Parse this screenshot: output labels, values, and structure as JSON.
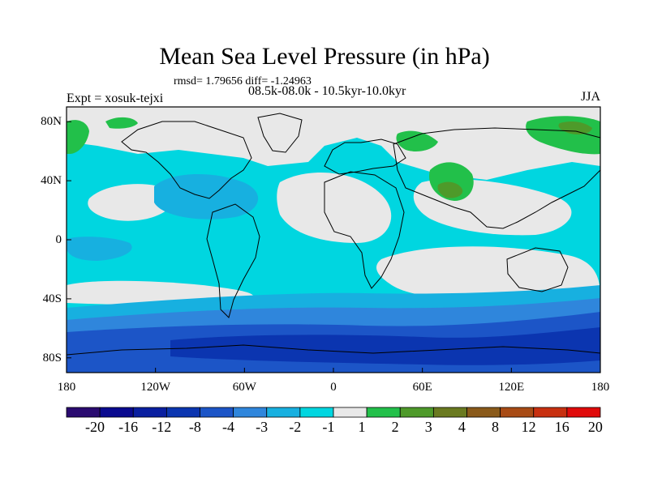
{
  "header": {
    "title": "Mean Sea Level Pressure (in hPa)",
    "stats": "rmsd= 1.79656 diff= -1.24963",
    "period": "08.5k-08.0k - 10.5kyr-10.0kyr",
    "experiment": "Expt = xosuk-tejxi",
    "season": "JJA"
  },
  "map": {
    "lat_ticks": [
      "80N",
      "40N",
      "0",
      "40S",
      "80S"
    ],
    "lon_ticks": [
      "180",
      "120W",
      "60W",
      "0",
      "60E",
      "120E",
      "180"
    ]
  },
  "colorbar": {
    "labels": [
      "-20",
      "-16",
      "-12",
      "-8",
      "-4",
      "-3",
      "-2",
      "-1",
      "1",
      "2",
      "3",
      "4",
      "8",
      "12",
      "16",
      "20"
    ],
    "colors": [
      "#2a0b70",
      "#0a0a8f",
      "#0a1fa0",
      "#0b35b0",
      "#1c55c7",
      "#2f86dc",
      "#17b0e0",
      "#00d6e0",
      "#e8e8e8",
      "#22c04a",
      "#4e9a2a",
      "#6a7a20",
      "#8a5a1a",
      "#a84b15",
      "#c83010",
      "#e00b0b"
    ]
  }
}
